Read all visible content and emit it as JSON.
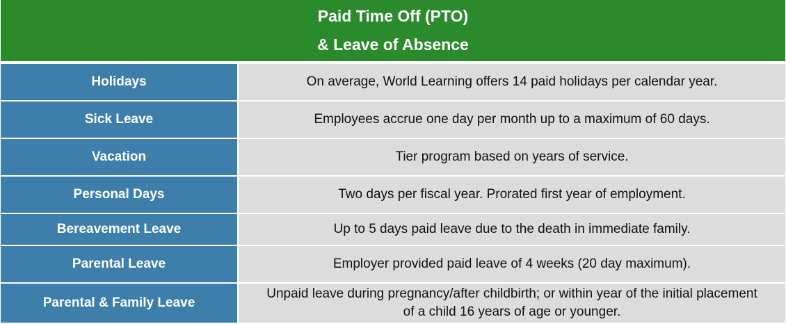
{
  "header": {
    "line1": "Paid Time Off (PTO)",
    "line2": "& Leave of Absence"
  },
  "rows": [
    {
      "label": "Holidays",
      "value": "On average, World Learning offers 14 paid holidays per calendar year."
    },
    {
      "label": "Sick Leave",
      "value": "Employees accrue one day per month up to a maximum of 60 days."
    },
    {
      "label": "Vacation",
      "value": "Tier program based on years of service."
    },
    {
      "label": "Personal Days",
      "value": "Two days per fiscal year. Prorated first year of employment."
    },
    {
      "label": "Bereavement Leave",
      "value": "Up to 5 days paid leave due to the death in immediate family."
    },
    {
      "label": "Parental Leave",
      "value": "Employer provided paid leave of 4 weeks (20 day maximum)."
    },
    {
      "label": "Parental & Family Leave",
      "value_line1": "Unpaid leave during pregnancy/after childbirth; or within year of the initial placement",
      "value_line2": "of a child 16 years of age or younger."
    }
  ],
  "colors": {
    "header_bg": "#2b8a2b",
    "label_bg": "#3d7faa",
    "value_bg": "#dcdcdc"
  }
}
